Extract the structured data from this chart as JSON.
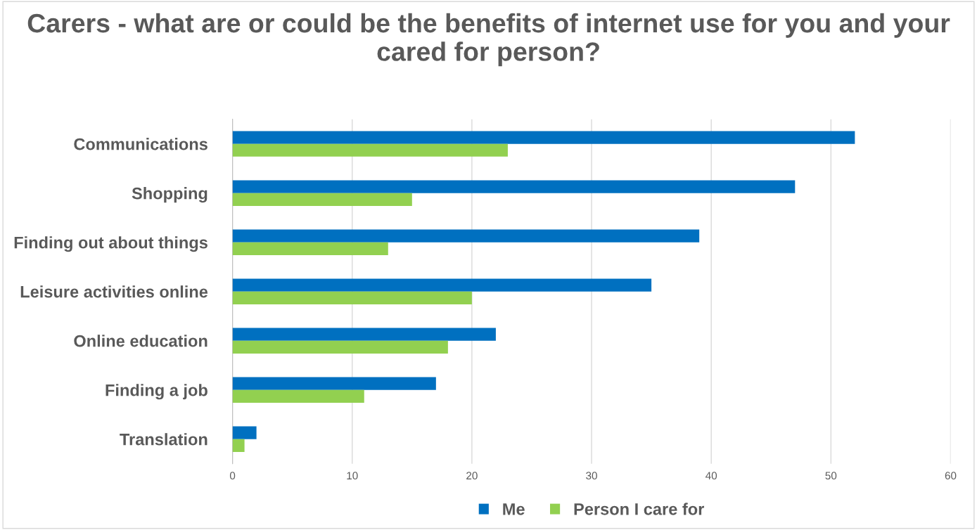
{
  "chart_data": {
    "type": "bar",
    "orientation": "horizontal",
    "title": "Carers - what are or could be the benefits of internet use for you and your cared for person?",
    "categories": [
      "Communications",
      "Shopping",
      "Finding out about things",
      "Leisure activities online",
      "Online education",
      "Finding a job",
      "Translation"
    ],
    "series": [
      {
        "name": "Me",
        "color": "#0070c0",
        "values": [
          52,
          47,
          39,
          35,
          22,
          17,
          2
        ]
      },
      {
        "name": "Person I care for",
        "color": "#92d050",
        "values": [
          23,
          15,
          13,
          20,
          18,
          11,
          1
        ]
      }
    ],
    "xlim": [
      0,
      60
    ],
    "xticks": [
      0,
      10,
      20,
      30,
      40,
      50,
      60
    ],
    "grid": "x",
    "legend": "bottom"
  }
}
